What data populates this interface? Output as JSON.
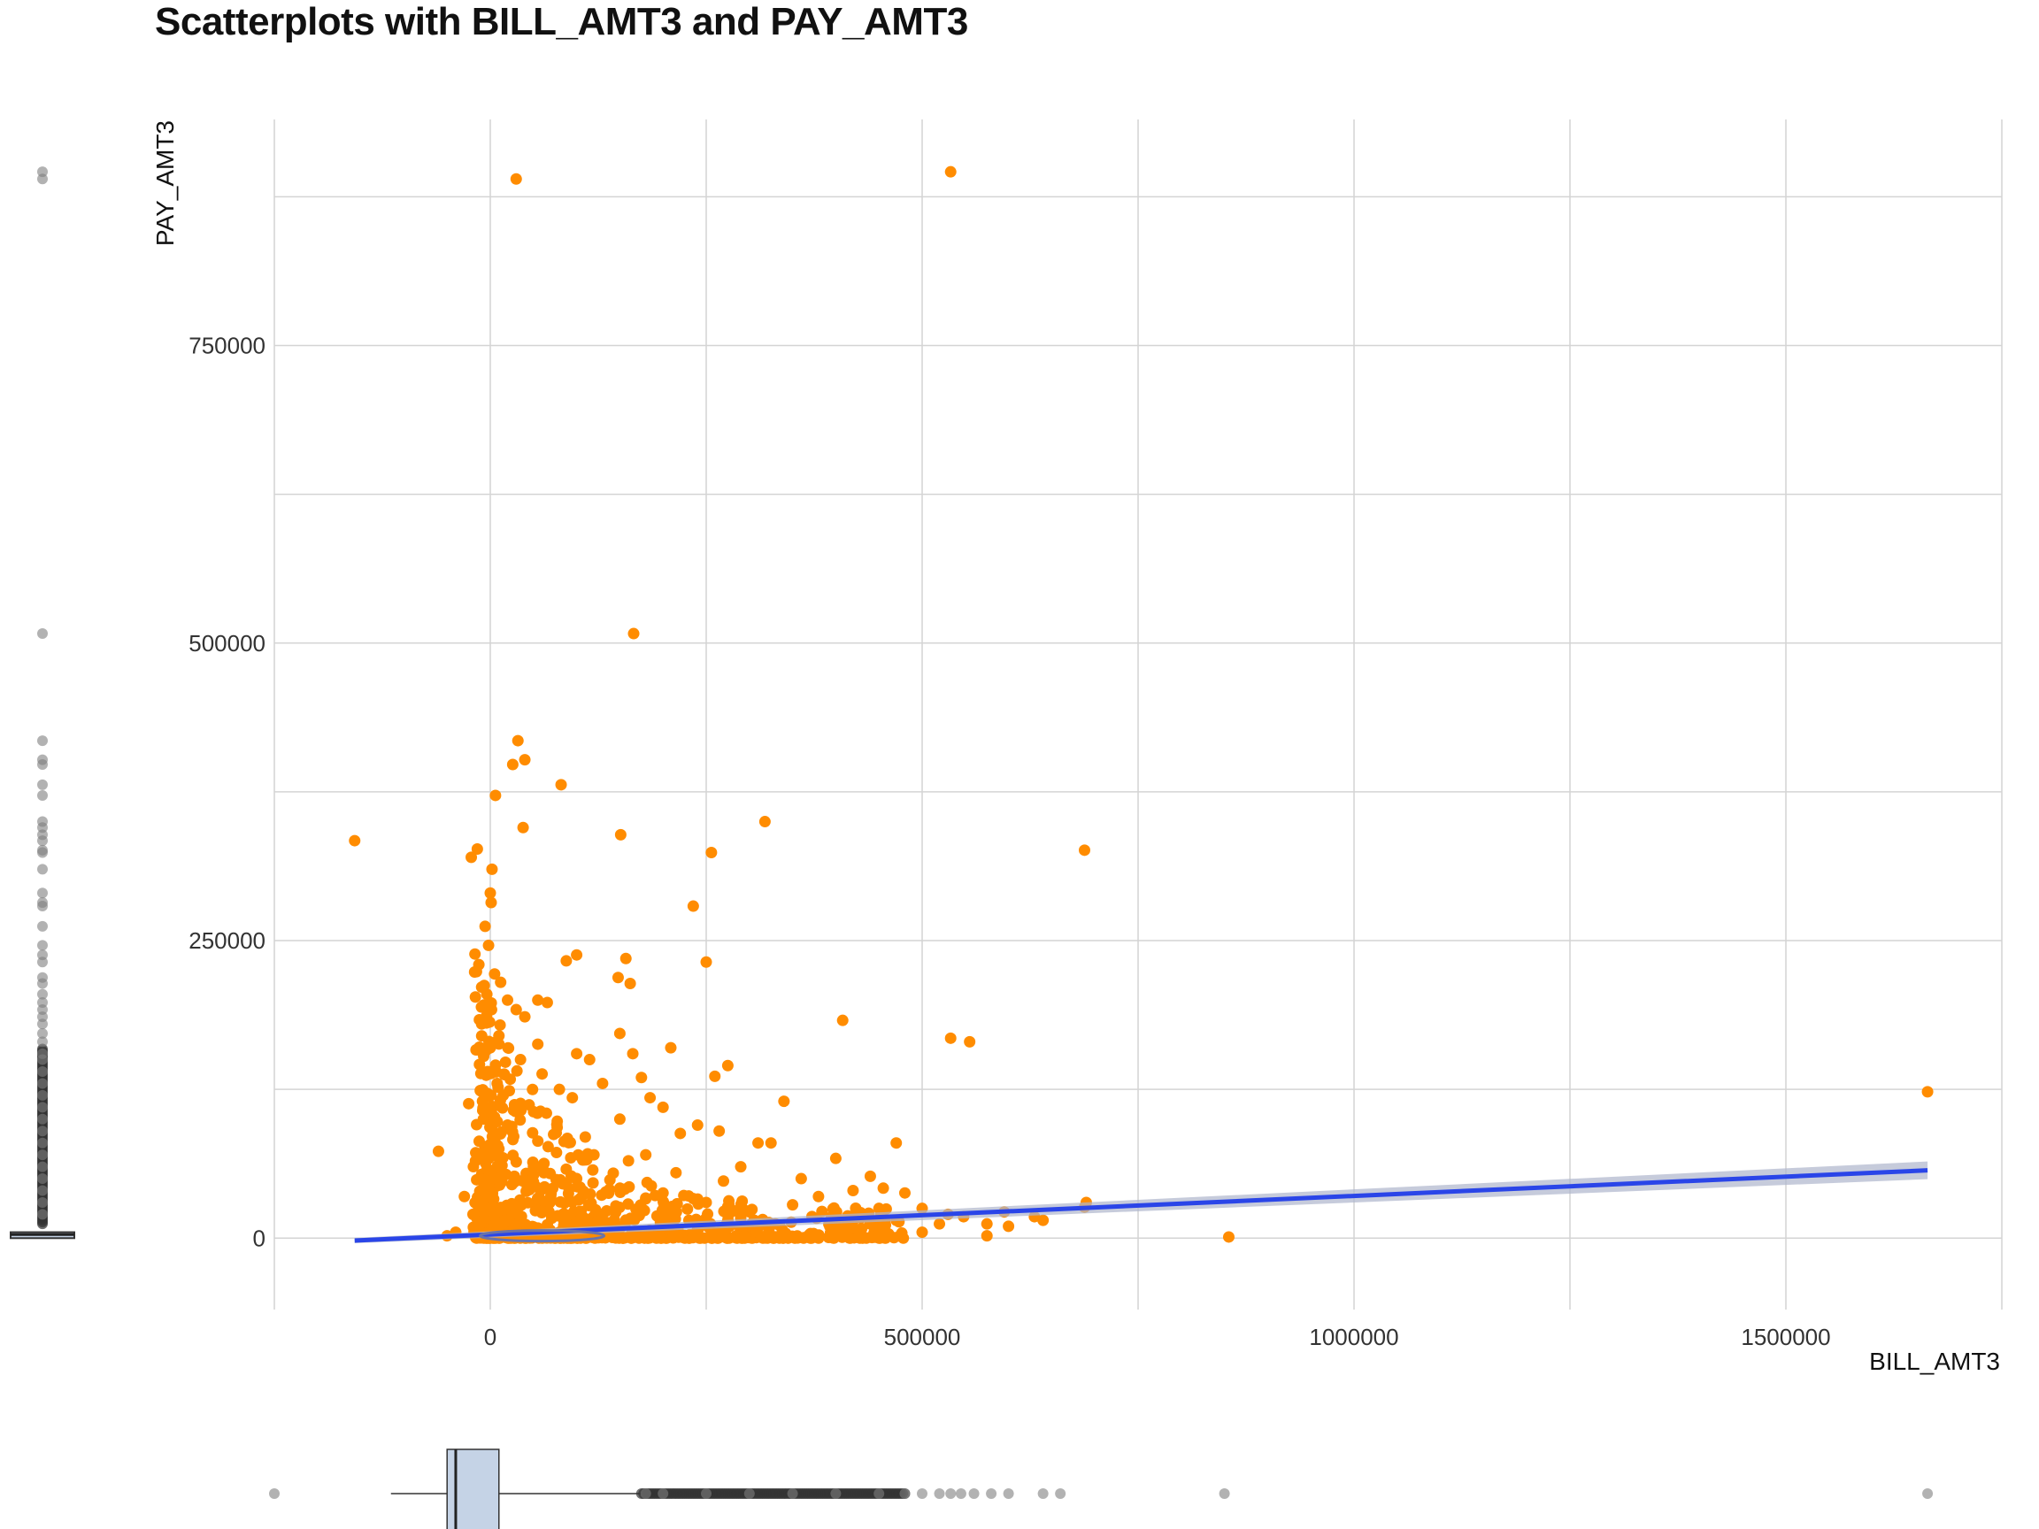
{
  "chart_data": {
    "type": "scatter",
    "title": "Scatterplots with BILL_AMT3 and PAY_AMT3",
    "xlabel": "BILL_AMT3",
    "ylabel": "PAY_AMT3",
    "xlim": [
      -250000,
      1750000
    ],
    "ylim": [
      -60000,
      940000
    ],
    "x_ticks": [
      0,
      500000,
      1000000,
      1500000
    ],
    "x_tick_labels": [
      "0",
      "500000",
      "1000000",
      "1500000"
    ],
    "y_ticks": [
      0,
      250000,
      500000,
      750000
    ],
    "y_tick_labels": [
      "0",
      "250000",
      "500000",
      "750000"
    ],
    "grid": true,
    "legend": "none",
    "colors": {
      "points": "#ff8c00",
      "fit_line": "#2a45e8",
      "fit_band": "#aeb5cc",
      "boxplot_fill": "#c5d3e6",
      "outlier": "#7f7f7f",
      "grid": "#d4d4d4"
    },
    "points": [
      [
        30000,
        890000
      ],
      [
        533000,
        896000
      ],
      [
        166000,
        508000
      ],
      [
        32000,
        418000
      ],
      [
        40000,
        402000
      ],
      [
        26000,
        398000
      ],
      [
        82000,
        381000
      ],
      [
        6000,
        372000
      ],
      [
        38000,
        345000
      ],
      [
        151000,
        339000
      ],
      [
        318000,
        350000
      ],
      [
        -157000,
        334000
      ],
      [
        688000,
        326000
      ],
      [
        256000,
        324000
      ],
      [
        -15000,
        327000
      ],
      [
        -22000,
        320000
      ],
      [
        2000,
        310000
      ],
      [
        235000,
        279000
      ],
      [
        0,
        290000
      ],
      [
        1000,
        282000
      ],
      [
        -6000,
        262000
      ],
      [
        -2000,
        246000
      ],
      [
        100000,
        238000
      ],
      [
        88000,
        233000
      ],
      [
        157000,
        235000
      ],
      [
        250000,
        232000
      ],
      [
        148000,
        219000
      ],
      [
        162000,
        214000
      ],
      [
        5000,
        222000
      ],
      [
        12000,
        215000
      ],
      [
        -4000,
        205000
      ],
      [
        20000,
        200000
      ],
      [
        55000,
        200000
      ],
      [
        66000,
        198000
      ],
      [
        408000,
        183000
      ],
      [
        30000,
        192000
      ],
      [
        40000,
        186000
      ],
      [
        -10000,
        180000
      ],
      [
        533000,
        168000
      ],
      [
        555000,
        165000
      ],
      [
        150000,
        172000
      ],
      [
        55000,
        163000
      ],
      [
        209000,
        160000
      ],
      [
        100000,
        155000
      ],
      [
        165000,
        155000
      ],
      [
        115000,
        150000
      ],
      [
        275000,
        145000
      ],
      [
        -3000,
        140000
      ],
      [
        8000,
        130000
      ],
      [
        15000,
        120000
      ],
      [
        60000,
        138000
      ],
      [
        260000,
        136000
      ],
      [
        175000,
        135000
      ],
      [
        80000,
        125000
      ],
      [
        130000,
        130000
      ],
      [
        340000,
        115000
      ],
      [
        45000,
        112000
      ],
      [
        -25000,
        113000
      ],
      [
        95000,
        118000
      ],
      [
        185000,
        118000
      ],
      [
        200000,
        110000
      ],
      [
        65000,
        105000
      ],
      [
        150000,
        100000
      ],
      [
        240000,
        95000
      ],
      [
        110000,
        85000
      ],
      [
        -60000,
        73000
      ],
      [
        470000,
        80000
      ],
      [
        310000,
        80000
      ],
      [
        325000,
        80000
      ],
      [
        220000,
        88000
      ],
      [
        265000,
        90000
      ],
      [
        400000,
        67000
      ],
      [
        440000,
        52000
      ],
      [
        180000,
        70000
      ],
      [
        290000,
        60000
      ],
      [
        360000,
        50000
      ],
      [
        480000,
        38000
      ],
      [
        455000,
        42000
      ],
      [
        420000,
        40000
      ],
      [
        380000,
        35000
      ],
      [
        500000,
        25000
      ],
      [
        530000,
        20000
      ],
      [
        548000,
        18000
      ],
      [
        575000,
        12000
      ],
      [
        595000,
        22000
      ],
      [
        630000,
        18000
      ],
      [
        690000,
        30000
      ],
      [
        688000,
        26000
      ],
      [
        575000,
        2000
      ],
      [
        855000,
        1000
      ],
      [
        1664000,
        123000
      ],
      [
        350000,
        28000
      ],
      [
        300000,
        22000
      ],
      [
        250000,
        30000
      ],
      [
        200000,
        38000
      ],
      [
        150000,
        42000
      ],
      [
        100000,
        50000
      ],
      [
        50000,
        60000
      ],
      [
        20000,
        95000
      ],
      [
        10000,
        75000
      ],
      [
        70000,
        35000
      ],
      [
        130000,
        20000
      ],
      [
        230000,
        15000
      ],
      [
        330000,
        12000
      ],
      [
        430000,
        8000
      ],
      [
        470000,
        15000
      ],
      [
        520000,
        12000
      ],
      [
        25000,
        45000
      ],
      [
        -30000,
        35000
      ],
      [
        -40000,
        5000
      ],
      [
        -50000,
        2000
      ],
      [
        -20000,
        20000
      ],
      [
        500000,
        5000
      ],
      [
        600000,
        10000
      ],
      [
        640000,
        15000
      ],
      [
        450000,
        25000
      ],
      [
        395000,
        18000
      ],
      [
        270000,
        48000
      ],
      [
        215000,
        55000
      ],
      [
        160000,
        65000
      ],
      [
        120000,
        70000
      ],
      [
        90000,
        82000
      ],
      [
        35000,
        150000
      ],
      [
        0,
        160000
      ],
      [
        10000,
        170000
      ],
      [
        -8000,
        100000
      ],
      [
        3000,
        90000
      ]
    ],
    "fit_line": {
      "x": [
        -157000,
        1664000
      ],
      "y": [
        -2000,
        57000
      ]
    },
    "x_boxplot": {
      "min": -250000,
      "q1": -50000,
      "median": -40000,
      "q3": 10000,
      "whisker_low": -115000,
      "whisker_high": 175000,
      "outliers": [
        180000,
        200000,
        250000,
        300000,
        350000,
        400000,
        450000,
        480000,
        500000,
        520000,
        533000,
        545000,
        560000,
        580000,
        600000,
        640000,
        660000,
        850000,
        1664000
      ]
    },
    "y_boxplot": {
      "min": -60000,
      "q1": 0,
      "median": 3000,
      "q3": 5000,
      "whisker_low": 0,
      "whisker_high": 12000,
      "outliers": [
        896000,
        890000,
        508000,
        418000,
        402000,
        398000,
        381000,
        372000,
        350000,
        345000,
        339000,
        334000,
        326000,
        324000,
        310000,
        290000,
        282000,
        279000,
        262000,
        246000,
        238000,
        232000,
        219000,
        214000,
        205000,
        198000,
        192000,
        186000,
        180000,
        172000,
        165000,
        155000,
        150000,
        140000,
        130000,
        120000,
        110000,
        100000,
        90000,
        80000,
        70000,
        60000,
        50000,
        40000,
        30000,
        20000
      ]
    }
  }
}
